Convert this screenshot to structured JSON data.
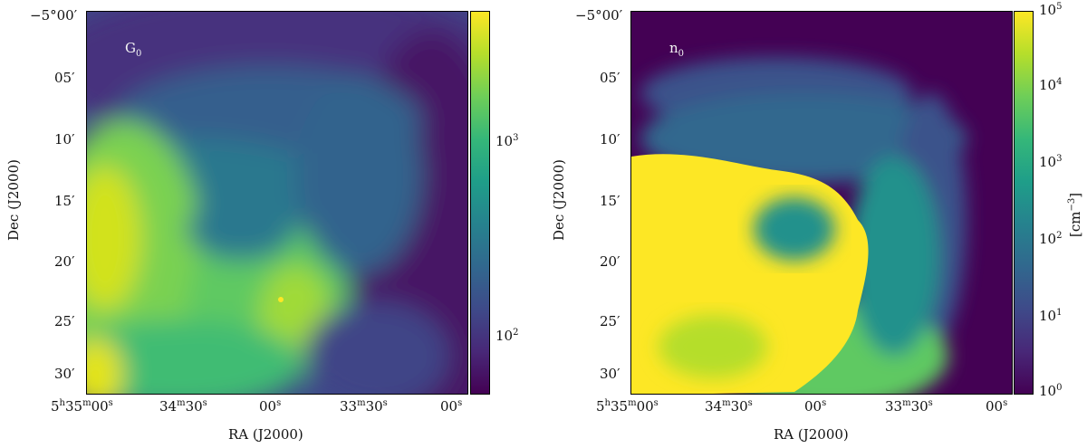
{
  "panels": [
    {
      "label": "G",
      "label_sub": "0",
      "ytick_labels": [
        "−5°00′",
        "05′",
        "10′",
        "15′",
        "20′",
        "25′",
        "30′"
      ],
      "xtick_labels": [
        {
          "main": "5",
          "sup1": "h",
          "m2": "35",
          "sup2": "m",
          "m3": "00",
          "sup3": "s"
        },
        {
          "main": "34",
          "sup1": "m",
          "m2": "30",
          "sup2": "s"
        },
        {
          "main": "00",
          "sup1": "s"
        },
        {
          "main": "33",
          "sup1": "m",
          "m2": "30",
          "sup2": "s"
        },
        {
          "main": "00",
          "sup1": "s"
        }
      ],
      "xlabel": "RA (J2000)",
      "ylabel": "Dec (J2000)",
      "colorbar": {
        "scale": "log",
        "colormap": "viridis",
        "labels": [
          {
            "base": "10",
            "exp": "3"
          },
          {
            "base": "10",
            "exp": "2"
          }
        ],
        "title": ""
      }
    },
    {
      "label": "n",
      "label_sub": "0",
      "ytick_labels": [
        "−5°00′",
        "05′",
        "10′",
        "15′",
        "20′",
        "25′",
        "30′"
      ],
      "xtick_labels": [
        {
          "main": "5",
          "sup1": "h",
          "m2": "35",
          "sup2": "m",
          "m3": "00",
          "sup3": "s"
        },
        {
          "main": "34",
          "sup1": "m",
          "m2": "30",
          "sup2": "s"
        },
        {
          "main": "00",
          "sup1": "s"
        },
        {
          "main": "33",
          "sup1": "m",
          "m2": "30",
          "sup2": "s"
        },
        {
          "main": "00",
          "sup1": "s"
        }
      ],
      "xlabel": "RA (J2000)",
      "ylabel": "Dec (J2000)",
      "colorbar": {
        "scale": "log",
        "colormap": "viridis",
        "labels": [
          {
            "base": "10",
            "exp": "5"
          },
          {
            "base": "10",
            "exp": "4"
          },
          {
            "base": "10",
            "exp": "3"
          },
          {
            "base": "10",
            "exp": "2"
          },
          {
            "base": "10",
            "exp": "1"
          },
          {
            "base": "10",
            "exp": "0"
          }
        ],
        "title": "[cm",
        "title_exp": "−3",
        "title_end": "]"
      }
    }
  ]
}
